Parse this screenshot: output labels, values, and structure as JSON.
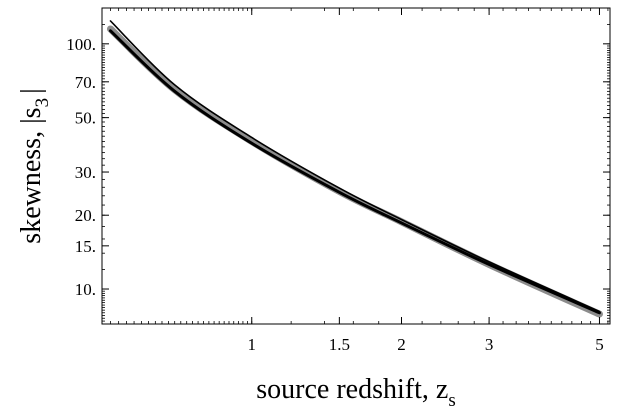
{
  "chart_data": {
    "type": "line",
    "title": "",
    "xlabel": "source redshift, z",
    "xlabel_subscript": "s",
    "ylabel": "skewness, |s",
    "ylabel_subscript": "3",
    "ylabel_suffix": "|",
    "x_scale": "log",
    "y_scale": "log",
    "xlim": [
      0.5,
      5.25
    ],
    "ylim": [
      7.2,
      140
    ],
    "x_ticks": [
      1,
      1.5,
      2,
      3,
      5
    ],
    "x_tick_labels": [
      "1",
      "1.5",
      "2",
      "3",
      "5"
    ],
    "y_ticks": [
      10,
      15,
      20,
      30,
      50,
      70,
      100
    ],
    "y_tick_labels": [
      "10.",
      "15.",
      "20.",
      "30.",
      "50.",
      "70.",
      "100."
    ],
    "grid": false,
    "legend": "none",
    "series": [
      {
        "color": "#8c8c8c",
        "width": "thick",
        "x": [
          0.52,
          0.7,
          1.0,
          1.5,
          2.0,
          3.0,
          5.0
        ],
        "y": [
          115,
          65,
          40,
          25,
          18.8,
          12.6,
          7.9
        ]
      },
      {
        "color": "#000000",
        "width": "medium",
        "x": [
          0.52,
          0.7,
          1.0,
          1.5,
          2.0,
          3.0,
          5.0
        ],
        "y": [
          113,
          64,
          39.3,
          24.8,
          18.6,
          12.6,
          8.0
        ]
      },
      {
        "color": "#000000",
        "width": "thin",
        "x": [
          0.52,
          0.7,
          1.0,
          1.5,
          2.0,
          3.0,
          5.0
        ],
        "y": [
          124,
          68,
          41.5,
          25.8,
          19.2,
          12.9,
          8.1
        ]
      }
    ]
  }
}
